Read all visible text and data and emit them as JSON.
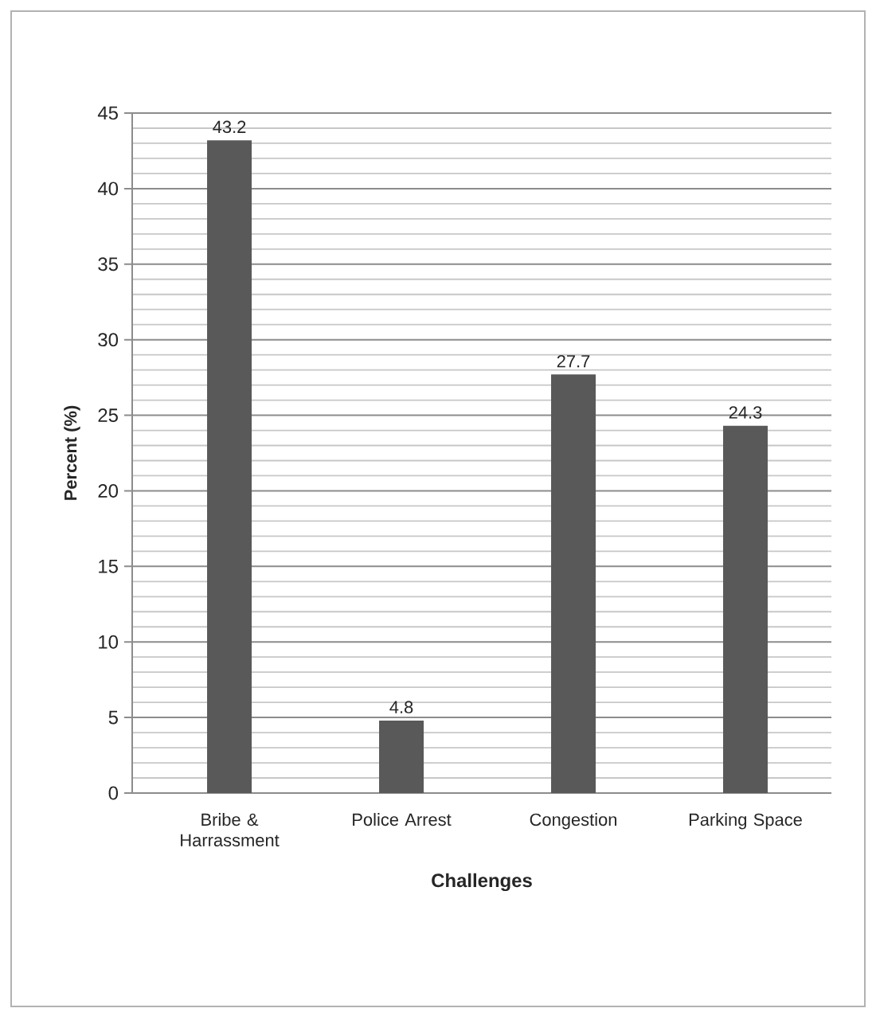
{
  "chart_data": {
    "type": "bar",
    "xlabel": "Challenges",
    "ylabel": "Percent (%)",
    "categories": [
      "Bribe & Harrassment",
      "Police Arrest",
      "Congestion",
      "Parking Space"
    ],
    "values": [
      43.2,
      4.8,
      27.7,
      24.3
    ],
    "color": "#595959",
    "ylim": [
      0,
      45
    ],
    "yticks": [
      0,
      5,
      10,
      15,
      20,
      25,
      30,
      35,
      40,
      45
    ],
    "grid": "y",
    "data_labels": true
  }
}
